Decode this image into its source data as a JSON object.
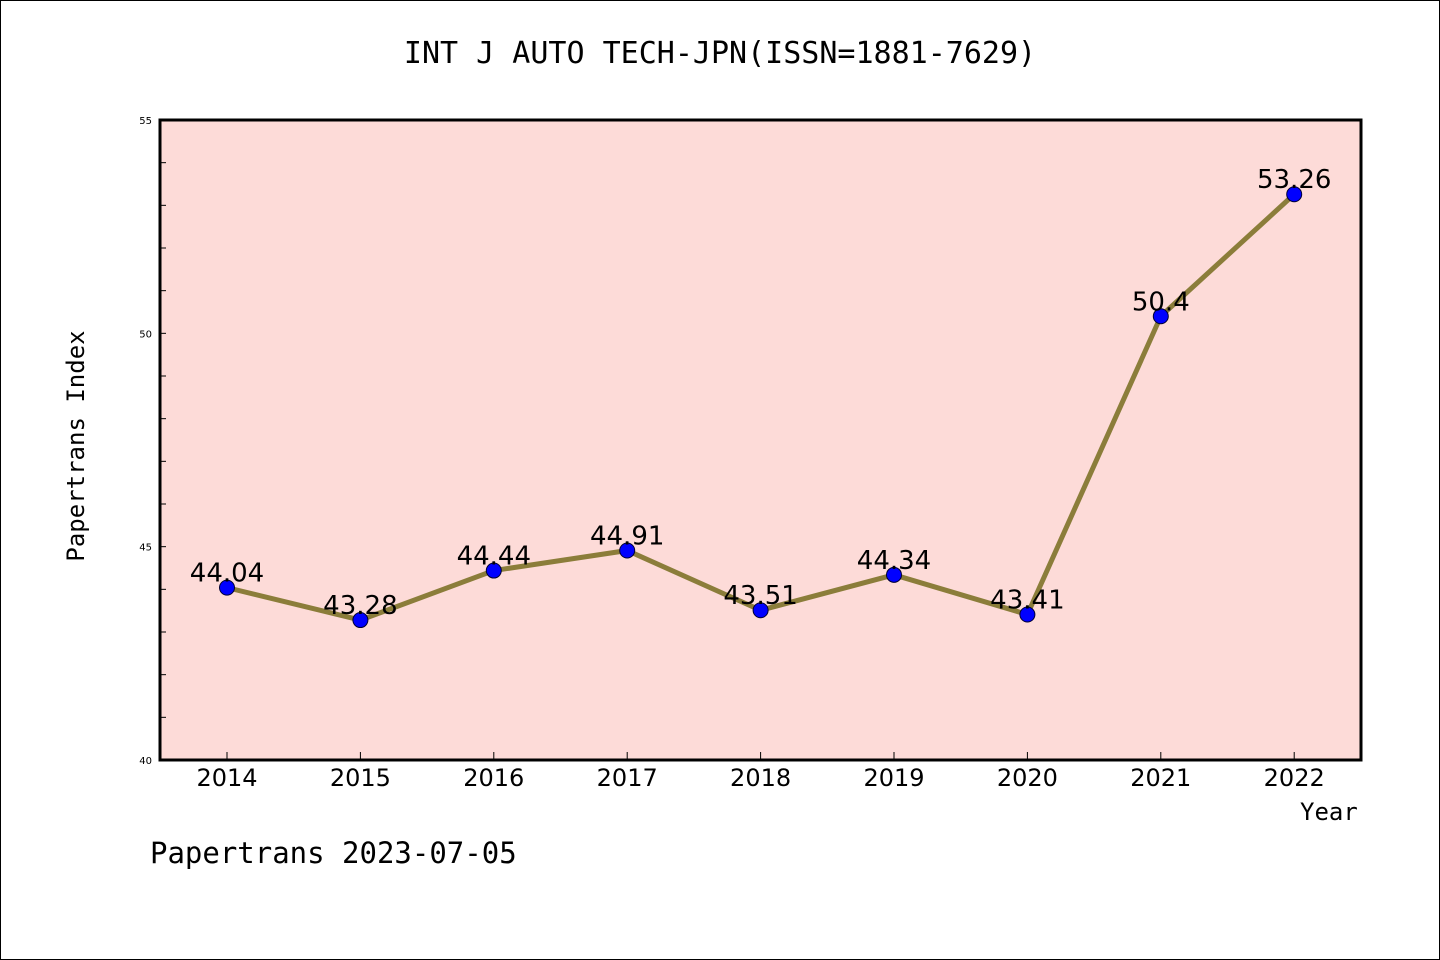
{
  "title": "INT J AUTO TECH-JPN(ISSN=1881-7629)",
  "footer": "Papertrans 2023-07-05",
  "colors": {
    "plot_background": "#fddbd8",
    "line": "#8b7d3a",
    "marker": "#0000ff",
    "axis": "#000000"
  },
  "chart_data": {
    "type": "line",
    "title": "INT J AUTO TECH-JPN(ISSN=1881-7629)",
    "xlabel": "Year",
    "ylabel": "Papertrans Index",
    "categories": [
      "2014",
      "2015",
      "2016",
      "2017",
      "2018",
      "2019",
      "2020",
      "2021",
      "2022"
    ],
    "series": [
      {
        "values": [
          44.04,
          43.28,
          44.44,
          44.91,
          43.51,
          44.34,
          43.41,
          50.4,
          53.26
        ],
        "labels": [
          "44.04",
          "43.28",
          "44.44",
          "44.91",
          "43.51",
          "44.34",
          "43.41",
          "50.4",
          "53.26"
        ]
      }
    ],
    "ylim": [
      40,
      55
    ],
    "yticks": [
      "40",
      "45",
      "50",
      "55"
    ],
    "y_minor_step": 1,
    "grid": false,
    "legend": "none"
  }
}
